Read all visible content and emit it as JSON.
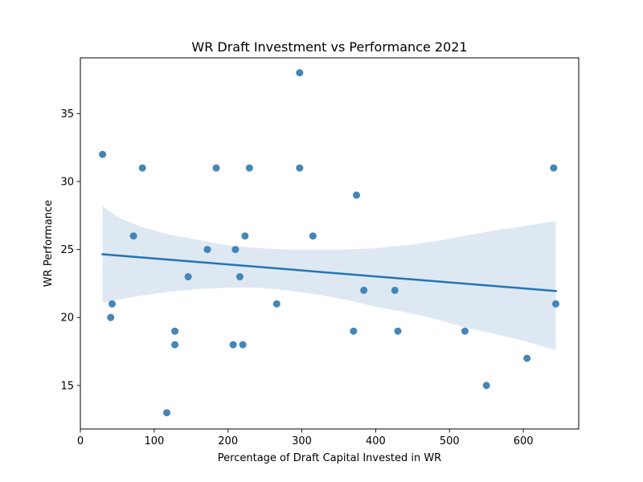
{
  "chart_data": {
    "type": "scatter",
    "title": "WR Draft Investment vs Performance 2021",
    "xlabel": "Percentage of Draft Capital Invested in WR",
    "ylabel": "WR Performance",
    "xlim": [
      0,
      675
    ],
    "ylim": [
      11.8,
      39.1
    ],
    "xticks": [
      0,
      100,
      200,
      300,
      400,
      500,
      600
    ],
    "yticks": [
      15,
      20,
      25,
      30,
      35
    ],
    "grid": false,
    "colors": {
      "points": "#3a7fb4",
      "line": "#2474b4",
      "band": "#d9e6f2"
    },
    "points": [
      {
        "x": 30,
        "y": 32
      },
      {
        "x": 41,
        "y": 20
      },
      {
        "x": 43,
        "y": 21
      },
      {
        "x": 72,
        "y": 26
      },
      {
        "x": 84,
        "y": 31
      },
      {
        "x": 117,
        "y": 13
      },
      {
        "x": 128,
        "y": 19
      },
      {
        "x": 128,
        "y": 18
      },
      {
        "x": 146,
        "y": 23
      },
      {
        "x": 172,
        "y": 25
      },
      {
        "x": 184,
        "y": 31
      },
      {
        "x": 207,
        "y": 18
      },
      {
        "x": 210,
        "y": 25
      },
      {
        "x": 216,
        "y": 23
      },
      {
        "x": 220,
        "y": 18
      },
      {
        "x": 223,
        "y": 26
      },
      {
        "x": 229,
        "y": 31
      },
      {
        "x": 266,
        "y": 21
      },
      {
        "x": 297,
        "y": 38
      },
      {
        "x": 297,
        "y": 31
      },
      {
        "x": 315,
        "y": 26
      },
      {
        "x": 370,
        "y": 19
      },
      {
        "x": 374,
        "y": 29
      },
      {
        "x": 384,
        "y": 22
      },
      {
        "x": 426,
        "y": 22
      },
      {
        "x": 430,
        "y": 19
      },
      {
        "x": 521,
        "y": 19
      },
      {
        "x": 550,
        "y": 15
      },
      {
        "x": 605,
        "y": 17
      },
      {
        "x": 641,
        "y": 31
      },
      {
        "x": 644,
        "y": 21
      }
    ],
    "regression": {
      "x": [
        30,
        644
      ],
      "y": [
        24.65,
        21.95
      ]
    },
    "confidence_band": {
      "x": [
        30,
        50,
        80,
        120,
        160,
        200,
        240,
        280,
        320,
        360,
        400,
        440,
        480,
        520,
        560,
        600,
        644
      ],
      "upper": [
        28.2,
        27.4,
        26.7,
        26.1,
        25.7,
        25.3,
        25.1,
        25.0,
        25.0,
        25.0,
        25.1,
        25.3,
        25.6,
        26.0,
        26.4,
        26.7,
        27.1
      ],
      "lower": [
        21.1,
        21.3,
        21.6,
        21.9,
        22.1,
        22.2,
        22.2,
        22.0,
        21.7,
        21.3,
        20.8,
        20.4,
        19.9,
        19.3,
        18.8,
        18.3,
        17.6
      ]
    }
  }
}
